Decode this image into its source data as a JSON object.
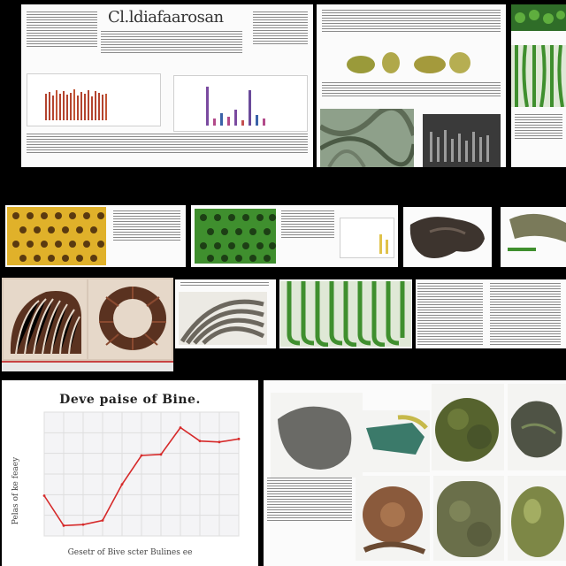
{
  "poster": {
    "title": "Cl.ldiafaarosan"
  },
  "line_chart": {
    "title": "Deve paise of Bine.",
    "ylabel": "Pelas of ke feaey",
    "xlabel": "Gesetr of Bive scter Bulines ee",
    "chart_data": {
      "type": "line",
      "title": "Deve paise of Bine.",
      "xlabel": "Gesetr of Bive scter Bulines ee",
      "ylabel": "Pelas of ke feaey",
      "x": [
        0,
        1,
        2,
        3,
        4,
        5,
        6,
        7,
        8,
        9,
        10
      ],
      "values": [
        0.39,
        0.1,
        0.11,
        0.15,
        0.5,
        0.78,
        0.79,
        1.05,
        0.92,
        0.91,
        0.94
      ],
      "ylim": [
        0,
        1.2
      ],
      "grid": true,
      "color": "#d62a2a"
    }
  },
  "colors": {
    "background": "#000000",
    "paper": "#fbfbfb",
    "green": "#3f8f2e",
    "yellow": "#e0b12a",
    "brown": "#5a3220",
    "gray": "#5e5e5e"
  }
}
